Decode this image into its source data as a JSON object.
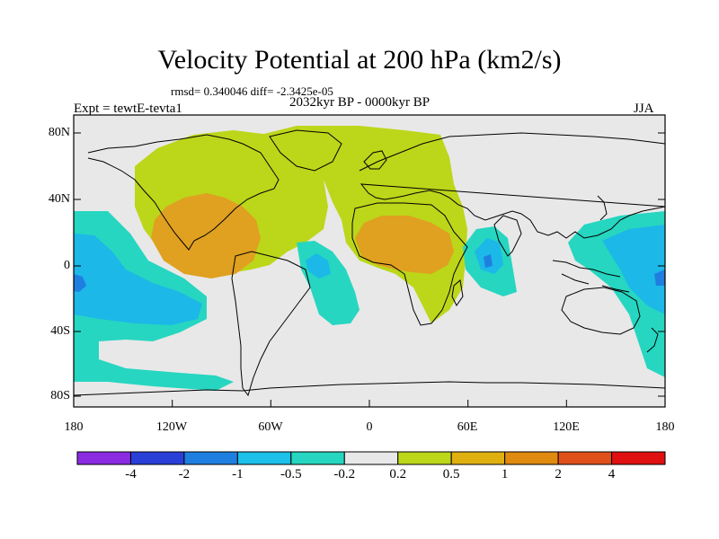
{
  "header": {
    "title": "Velocity Potential at 200 hPa (km2/s)",
    "stats": "rmsd= 0.340046 diff= -2.3425e-05",
    "experiment": "Expt = tewtE-tevta1",
    "period": "2032kyr BP - 0000kyr BP",
    "season": "JJA"
  },
  "axes": {
    "lat_ticks": [
      "80N",
      "40N",
      "0",
      "40S",
      "80S"
    ],
    "lon_ticks": [
      "180",
      "120W",
      "60W",
      "0",
      "60E",
      "120E",
      "180"
    ]
  },
  "colorbar": {
    "labels": [
      "-4",
      "-2",
      "-1",
      "-0.5",
      "-0.2",
      "0.2",
      "0.5",
      "1",
      "2",
      "4"
    ],
    "colors": [
      "#8a2be2",
      "#2a3fd8",
      "#1f7fe0",
      "#1cc0e8",
      "#26d6c0",
      "#e8e8e8",
      "#bcd61a",
      "#e0b010",
      "#e08a10",
      "#e0501a",
      "#e01010"
    ]
  },
  "map_colors": {
    "background": "#e8e8e8",
    "positive_low": "#bcd61a",
    "positive_mid": "#e0a020",
    "negative_low": "#26d6c0",
    "negative_mid": "#1cb8e8",
    "negative_high": "#1f7fe0"
  }
}
